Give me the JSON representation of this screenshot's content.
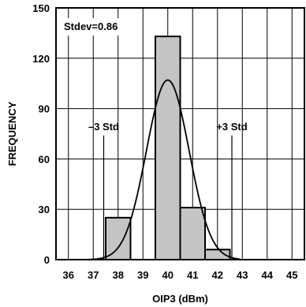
{
  "chart_data": {
    "type": "bar",
    "title": "",
    "xlabel": "OIP3 (dBm)",
    "ylabel": "FREQUENCY",
    "xlim": [
      35.5,
      45.5
    ],
    "ylim": [
      0,
      150
    ],
    "x_ticks": [
      "36",
      "37",
      "38",
      "39",
      "40",
      "41",
      "42",
      "43",
      "44",
      "45"
    ],
    "y_ticks": [
      "0",
      "30",
      "60",
      "90",
      "120",
      "150"
    ],
    "grid": true,
    "bars": [
      {
        "x0": 37.5,
        "x1": 38.5,
        "value": 25
      },
      {
        "x0": 38.5,
        "x1": 39.5,
        "value": 0
      },
      {
        "x0": 39.5,
        "x1": 40.5,
        "value": 133
      },
      {
        "x0": 40.5,
        "x1": 41.5,
        "value": 31
      },
      {
        "x0": 41.5,
        "x1": 42.5,
        "value": 6
      }
    ],
    "fit_curve": {
      "type": "normal",
      "mean": 40.0,
      "stdev": 0.86,
      "peak": 107,
      "x_range": [
        36.8,
        42.9
      ]
    },
    "reference_lines": [
      {
        "x": 37.42,
        "label": "–3 Std"
      },
      {
        "x": 42.58,
        "label": "+3 Std"
      }
    ],
    "annotations": [
      "Stdev=0.86"
    ]
  }
}
